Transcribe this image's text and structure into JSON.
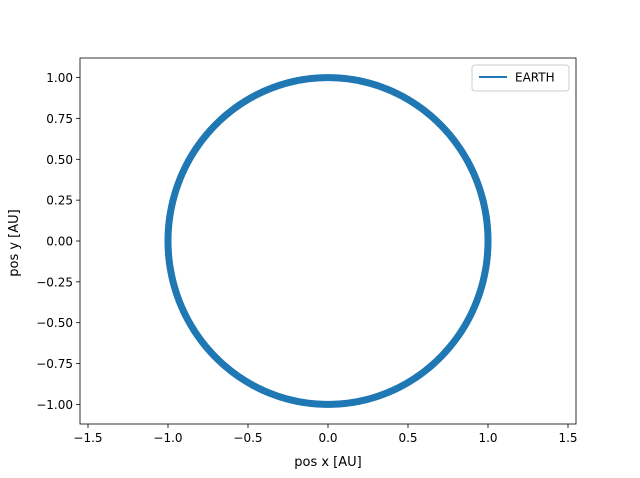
{
  "chart_data": {
    "type": "line",
    "title": "",
    "xlabel": "pos x [AU]",
    "ylabel": "pos y [AU]",
    "xlim": [
      -1.55,
      1.55
    ],
    "ylim": [
      -1.12,
      1.12
    ],
    "xticks": [
      -1.5,
      -1.0,
      -0.5,
      0.0,
      0.5,
      1.0,
      1.5
    ],
    "xtick_labels": [
      "−1.5",
      "−1.0",
      "−0.5",
      "0.0",
      "0.5",
      "1.0",
      "1.5"
    ],
    "yticks": [
      1.0,
      0.75,
      0.5,
      0.25,
      0.0,
      -0.25,
      -0.5,
      -0.75,
      -1.0
    ],
    "ytick_labels": [
      "1.00",
      "0.75",
      "0.50",
      "0.25",
      "0.00",
      "−0.25",
      "−0.50",
      "−0.75",
      "−1.00"
    ],
    "grid": false,
    "legend_position": "top-right",
    "series": [
      {
        "name": "EARTH",
        "color": "#1f77b4",
        "description_shape": "circular orbit",
        "radius": 1.0,
        "center": [
          0.0,
          0.0
        ]
      }
    ]
  }
}
